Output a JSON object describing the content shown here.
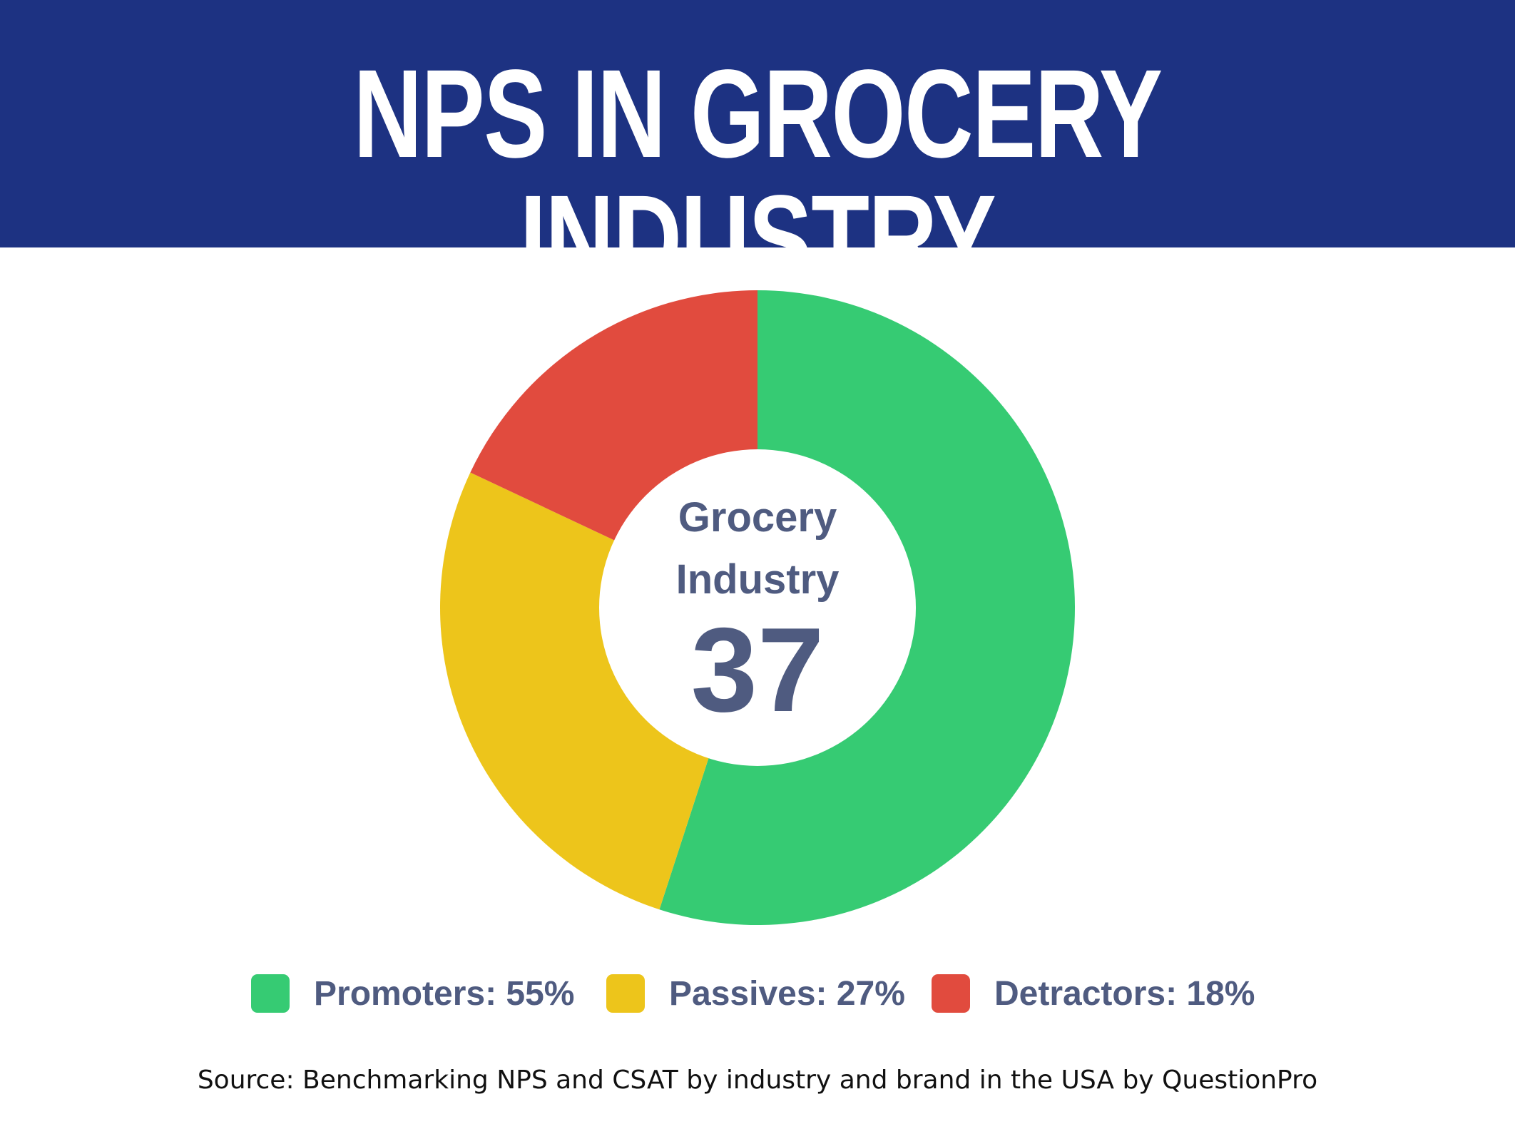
{
  "header": {
    "title": "NPS IN GROCERY INDUSTRY",
    "background_color": "#1d3282"
  },
  "chart_data": {
    "type": "pie",
    "style": "donut",
    "title": "NPS IN GROCERY INDUSTRY",
    "center_label_line1": "Grocery",
    "center_label_line2": "Industry",
    "center_value": "37",
    "slices": [
      {
        "name": "Promoters",
        "value": 55,
        "color": "#36cb73",
        "legend_label": "Promoters: 55%"
      },
      {
        "name": "Passives",
        "value": 27,
        "color": "#edc51b",
        "legend_label": "Passives: 27%"
      },
      {
        "name": "Detractors",
        "value": 18,
        "color": "#e14b3e",
        "legend_label": "Detractors: 18%"
      }
    ],
    "legend_position": "bottom"
  },
  "footer": {
    "source": "Source: Benchmarking NPS and CSAT by industry and brand in the USA by QuestionPro"
  }
}
